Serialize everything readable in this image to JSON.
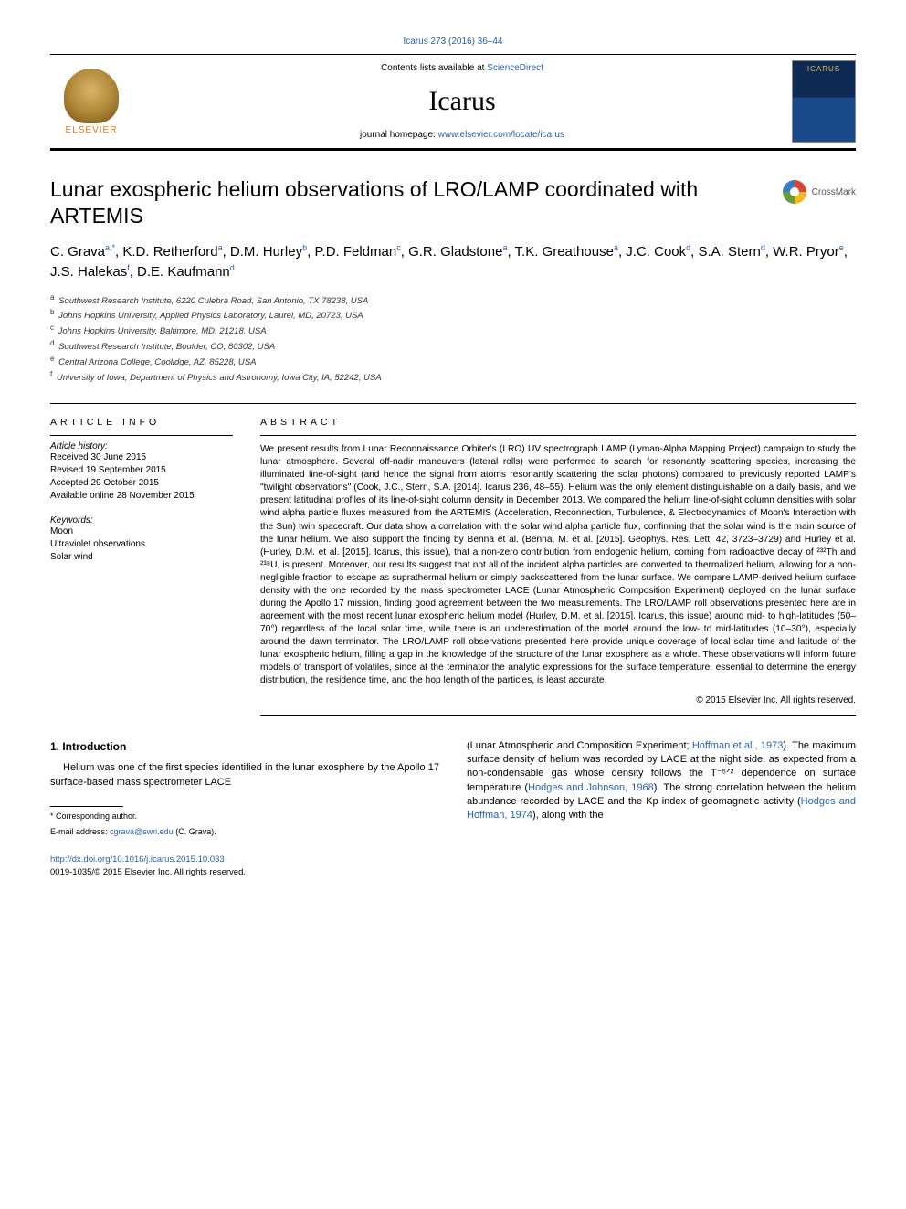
{
  "header": {
    "journal_ref": "Icarus 273 (2016) 36–44",
    "contents_prefix": "Contents lists available at ",
    "contents_link": "ScienceDirect",
    "journal_name": "Icarus",
    "homepage_prefix": "journal homepage: ",
    "homepage_link": "www.elsevier.com/locate/icarus",
    "elsevier_label": "ELSEVIER",
    "crossmark_label": "CrossMark"
  },
  "title": "Lunar exospheric helium observations of LRO/LAMP coordinated with ARTEMIS",
  "authors_html": "C. Grava<sup>a,*</sup>, K.D. Retherford<sup>a</sup>, D.M. Hurley<sup>b</sup>, P.D. Feldman<sup>c</sup>, G.R. Gladstone<sup>a</sup>, T.K. Greathouse<sup>a</sup>, J.C. Cook<sup>d</sup>, S.A. Stern<sup>d</sup>, W.R. Pryor<sup>e</sup>, J.S. Halekas<sup>f</sup>, D.E. Kaufmann<sup>d</sup>",
  "affiliations": [
    {
      "label": "a",
      "text": "Southwest Research Institute, 6220 Culebra Road, San Antonio, TX 78238, USA"
    },
    {
      "label": "b",
      "text": "Johns Hopkins University, Applied Physics Laboratory, Laurel, MD, 20723, USA"
    },
    {
      "label": "c",
      "text": "Johns Hopkins University, Baltimore, MD, 21218, USA"
    },
    {
      "label": "d",
      "text": "Southwest Research Institute, Boulder, CO, 80302, USA"
    },
    {
      "label": "e",
      "text": "Central Arizona College, Coolidge, AZ, 85228, USA"
    },
    {
      "label": "f",
      "text": "University of Iowa, Department of Physics and Astronomy, Iowa City, IA, 52242, USA"
    }
  ],
  "article_info": {
    "heading": "ARTICLE INFO",
    "history_label": "Article history:",
    "history": [
      "Received 30 June 2015",
      "Revised 19 September 2015",
      "Accepted 29 October 2015",
      "Available online 28 November 2015"
    ],
    "keywords_label": "Keywords:",
    "keywords": [
      "Moon",
      "Ultraviolet observations",
      "Solar wind"
    ]
  },
  "abstract": {
    "heading": "ABSTRACT",
    "text": "We present results from Lunar Reconnaissance Orbiter's (LRO) UV spectrograph LAMP (Lyman-Alpha Mapping Project) campaign to study the lunar atmosphere. Several off-nadir maneuvers (lateral rolls) were performed to search for resonantly scattering species, increasing the illuminated line-of-sight (and hence the signal from atoms resonantly scattering the solar photons) compared to previously reported LAMP's \"twilight observations\" (Cook, J.C., Stern, S.A. [2014]. Icarus 236, 48–55). Helium was the only element distinguishable on a daily basis, and we present latitudinal profiles of its line-of-sight column density in December 2013. We compared the helium line-of-sight column densities with solar wind alpha particle fluxes measured from the ARTEMIS (Acceleration, Reconnection, Turbulence, & Electrodynamics of Moon's Interaction with the Sun) twin spacecraft. Our data show a correlation with the solar wind alpha particle flux, confirming that the solar wind is the main source of the lunar helium. We also support the finding by Benna et al. (Benna, M. et al. [2015]. Geophys. Res. Lett. 42, 3723–3729) and Hurley et al. (Hurley, D.M. et al. [2015]. Icarus, this issue), that a non-zero contribution from endogenic helium, coming from radioactive decay of ²³²Th and ²³⁸U, is present. Moreover, our results suggest that not all of the incident alpha particles are converted to thermalized helium, allowing for a non-negligible fraction to escape as suprathermal helium or simply backscattered from the lunar surface. We compare LAMP-derived helium surface density with the one recorded by the mass spectrometer LACE (Lunar Atmospheric Composition Experiment) deployed on the lunar surface during the Apollo 17 mission, finding good agreement between the two measurements. The LRO/LAMP roll observations presented here are in agreement with the most recent lunar exospheric helium model (Hurley, D.M. et al. [2015]. Icarus, this issue) around mid- to high-latitudes (50–70°) regardless of the local solar time, while there is an underestimation of the model around the low- to mid-latitudes (10–30°), especially around the dawn terminator. The LRO/LAMP roll observations presented here provide unique coverage of local solar time and latitude of the lunar exospheric helium, filling a gap in the knowledge of the structure of the lunar exosphere as a whole. These observations will inform future models of transport of volatiles, since at the terminator the analytic expressions for the surface temperature, essential to determine the energy distribution, the residence time, and the hop length of the particles, is least accurate.",
    "copyright": "© 2015 Elsevier Inc. All rights reserved."
  },
  "intro": {
    "heading": "1. Introduction",
    "col1": "Helium was one of the first species identified in the lunar exosphere by the Apollo 17 surface-based mass spectrometer LACE",
    "col2_parts": [
      {
        "text": "(Lunar Atmospheric and Composition Experiment; ",
        "link": false
      },
      {
        "text": "Hoffman et al., 1973",
        "link": true
      },
      {
        "text": "). The maximum surface density of helium was recorded by LACE at the night side, as expected from a non-condensable gas whose density follows the T",
        "link": false
      },
      {
        "text": "⁻⁵ᐟ²",
        "link": false
      },
      {
        "text": " dependence on surface temperature (",
        "link": false
      },
      {
        "text": "Hodges and Johnson, 1968",
        "link": true
      },
      {
        "text": "). The strong correlation between the helium abundance recorded by LACE and the Kp index of geomagnetic activity (",
        "link": false
      },
      {
        "text": "Hodges and Hoffman, 1974",
        "link": true
      },
      {
        "text": "), along with the",
        "link": false
      }
    ]
  },
  "footnote": {
    "corresponding": "* Corresponding author.",
    "email_label": "E-mail address: ",
    "email": "cgrava@swri.edu",
    "email_suffix": " (C. Grava)."
  },
  "footer": {
    "doi": "http://dx.doi.org/10.1016/j.icarus.2015.10.033",
    "issn_line": "0019-1035/© 2015 Elsevier Inc. All rights reserved."
  },
  "colors": {
    "link": "#2862ae",
    "elsevier_orange": "#e67817",
    "text": "#000000"
  }
}
